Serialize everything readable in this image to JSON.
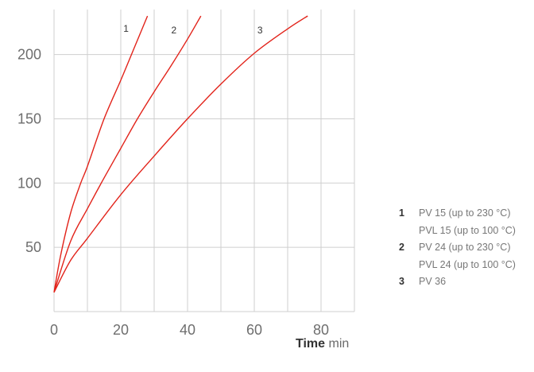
{
  "chart_data": {
    "type": "line",
    "xlabel_bold": "Time",
    "xlabel_unit": "min",
    "ylabel": "",
    "xlim": [
      0,
      90
    ],
    "ylim": [
      0,
      235
    ],
    "x_ticks": [
      0,
      20,
      40,
      60,
      80
    ],
    "y_ticks": [
      50,
      100,
      150,
      200
    ],
    "grid": true,
    "series": [
      {
        "name": "1",
        "color": "#e2231a",
        "x": [
          0,
          2,
          5,
          8,
          10,
          15,
          20,
          24,
          28
        ],
        "y": [
          15,
          44,
          77,
          100,
          113,
          150,
          180,
          205,
          230
        ]
      },
      {
        "name": "2",
        "color": "#e2231a",
        "x": [
          0,
          5,
          10,
          15,
          20,
          25,
          30,
          35,
          40,
          44
        ],
        "y": [
          15,
          55,
          80,
          104,
          127,
          150,
          171,
          191,
          212,
          230
        ]
      },
      {
        "name": "3",
        "color": "#e2231a",
        "x": [
          0,
          5,
          10,
          20,
          30,
          40,
          50,
          60,
          70,
          76
        ],
        "y": [
          15,
          40,
          57,
          91,
          121,
          150,
          177,
          201,
          220,
          230
        ]
      }
    ],
    "legend_position": "bottom-right",
    "legend": [
      {
        "num": "1",
        "text": "PV 15 (up to 230 °C)"
      },
      {
        "num": "",
        "text": "PVL 15 (up to 100 °C)"
      },
      {
        "num": "2",
        "text": "PV 24 (up to 230 °C)"
      },
      {
        "num": "",
        "text": "PVL 24 (up to 100 °C)"
      },
      {
        "num": "3",
        "text": "PV 36"
      }
    ]
  }
}
